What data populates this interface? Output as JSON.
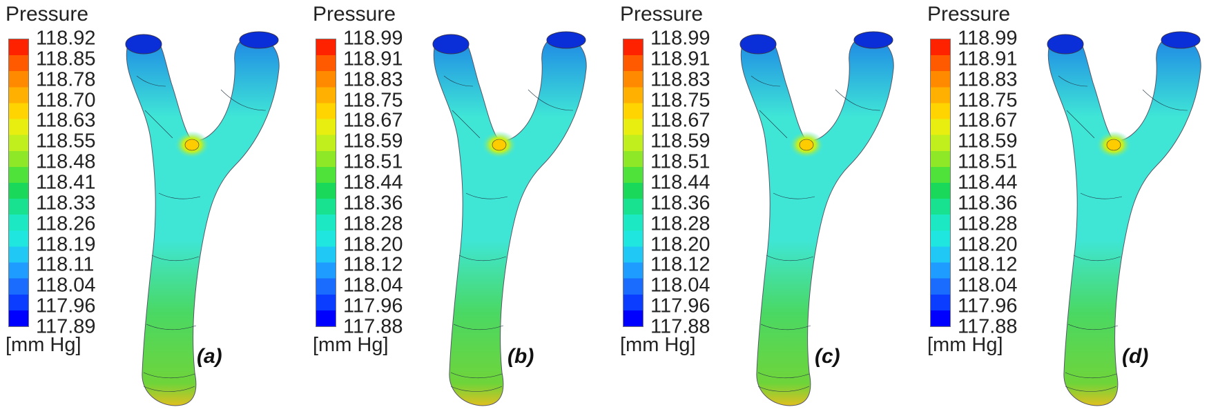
{
  "colors": {
    "scale": [
      "#0000ff",
      "#0a3dff",
      "#1a6cff",
      "#1f9cff",
      "#20c8f5",
      "#20e6e0",
      "#1de8c4",
      "#18e28f",
      "#1ad85a",
      "#4fe23a",
      "#8ee828",
      "#c0ef1d",
      "#e8ef10",
      "#ffd400",
      "#ffb000",
      "#ff8a00",
      "#ff5a00",
      "#ff2200"
    ],
    "vessel_body": "#3fe6d6",
    "vessel_trunk": "#4ad863",
    "vessel_branches": "#1e86e6"
  },
  "panels": [
    {
      "title": "Pressure",
      "ticks": [
        "118.92",
        "118.85",
        "118.78",
        "118.70",
        "118.63",
        "118.55",
        "118.48",
        "118.41",
        "118.33",
        "118.26",
        "118.19",
        "118.11",
        "118.04",
        "117.96",
        "117.89"
      ],
      "unit": "[mm Hg]",
      "label": "(a)"
    },
    {
      "title": "Pressure",
      "ticks": [
        "118.99",
        "118.91",
        "118.83",
        "118.75",
        "118.67",
        "118.59",
        "118.51",
        "118.44",
        "118.36",
        "118.28",
        "118.20",
        "118.12",
        "118.04",
        "117.96",
        "117.88"
      ],
      "unit": "[mm Hg]",
      "label": "(b)"
    },
    {
      "title": "Pressure",
      "ticks": [
        "118.99",
        "118.91",
        "118.83",
        "118.75",
        "118.67",
        "118.59",
        "118.51",
        "118.44",
        "118.36",
        "118.28",
        "118.20",
        "118.12",
        "118.04",
        "117.96",
        "117.88"
      ],
      "unit": "[mm Hg]",
      "label": "(c)"
    },
    {
      "title": "Pressure",
      "ticks": [
        "118.99",
        "118.91",
        "118.83",
        "118.75",
        "118.67",
        "118.59",
        "118.51",
        "118.44",
        "118.36",
        "118.28",
        "118.20",
        "118.12",
        "118.04",
        "117.96",
        "117.88"
      ],
      "unit": "[mm Hg]",
      "label": "(d)"
    }
  ]
}
